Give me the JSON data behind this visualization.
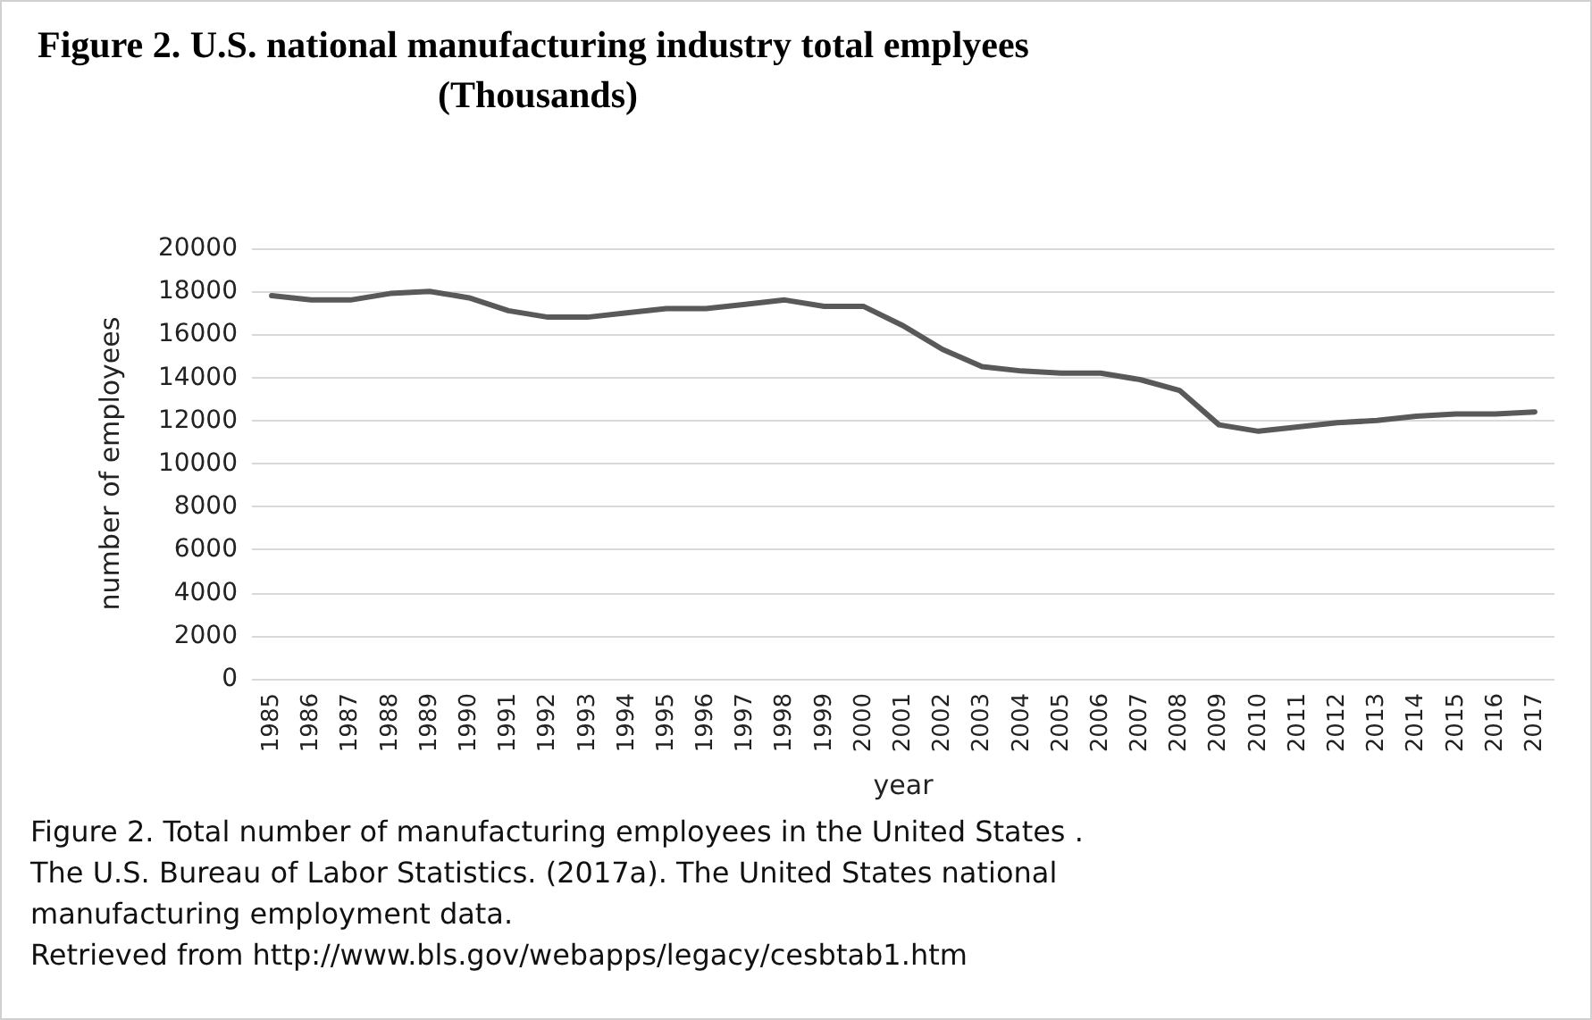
{
  "chart_data": {
    "type": "line",
    "title": "Figure 2. U.S. national manufacturing industry total emplyees",
    "subtitle": "(Thousands)",
    "xlabel": "year",
    "ylabel": "number of employees",
    "categories": [
      "1985",
      "1986",
      "1987",
      "1988",
      "1989",
      "1990",
      "1991",
      "1992",
      "1993",
      "1994",
      "1995",
      "1996",
      "1997",
      "1998",
      "1999",
      "2000",
      "2001",
      "2002",
      "2003",
      "2004",
      "2005",
      "2006",
      "2007",
      "2008",
      "2009",
      "2010",
      "2011",
      "2012",
      "2013",
      "2014",
      "2015",
      "2016",
      "2017"
    ],
    "series": [
      {
        "color": "#595959",
        "values": [
          17800,
          17600,
          17600,
          17900,
          18000,
          17700,
          17100,
          16800,
          16800,
          17000,
          17200,
          17200,
          17400,
          17600,
          17300,
          17300,
          16400,
          15300,
          14500,
          14300,
          14200,
          14200,
          13900,
          13400,
          11800,
          11500,
          11700,
          11900,
          12000,
          12200,
          12300,
          12300,
          12400
        ]
      }
    ],
    "ylim": [
      0,
      20000
    ],
    "yticks": [
      0,
      2000,
      4000,
      6000,
      8000,
      10000,
      12000,
      14000,
      16000,
      18000,
      20000
    ],
    "grid": "y",
    "marker": "none",
    "line_style": "solid",
    "annotations": [
      "Figure 2.  Total number of  manufacturing employees in the United States .",
      "The U.S. Bureau of Labor Statistics. (2017a). The United States national",
      "manufacturing employment data.",
      "Retrieved from http://www.bls.gov/webapps/legacy/cesbtab1.htm"
    ]
  }
}
